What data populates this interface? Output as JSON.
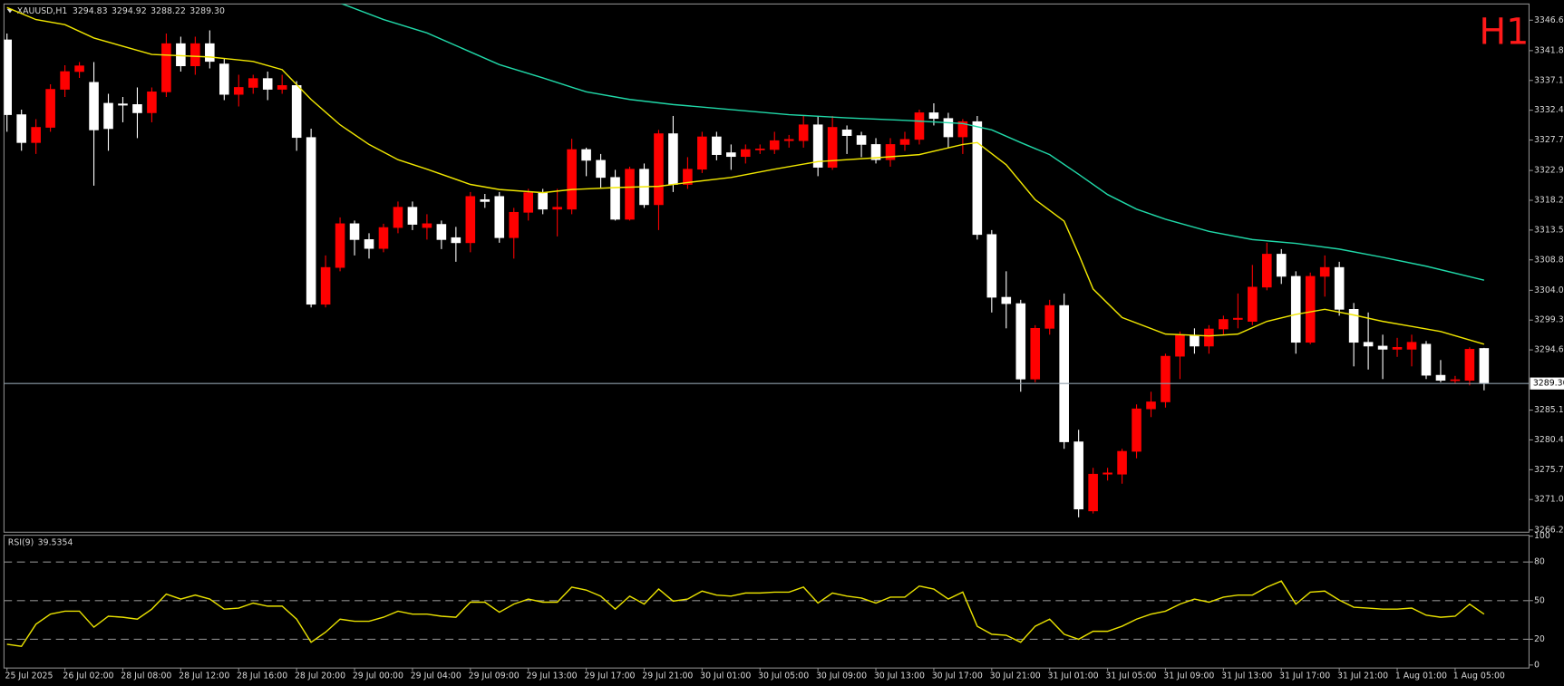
{
  "chart_data": [
    {
      "type": "candlestick",
      "title": "XAUUSD,H1",
      "watermark": "H1",
      "quote": {
        "open": 3294.83,
        "high": 3294.92,
        "low": 3288.22,
        "close": {
          "value": 3289.3,
          "label": "3289.30"
        }
      },
      "up_color": "#ff0000",
      "down_color": "#ffffff",
      "categories": [
        "25 Jul 2025",
        null,
        null,
        null,
        "26 Jul 02:00",
        null,
        null,
        null,
        "28 Jul 08:00",
        null,
        null,
        null,
        "28 Jul 12:00",
        null,
        null,
        null,
        "28 Jul 16:00",
        null,
        null,
        null,
        "28 Jul 20:00",
        null,
        null,
        null,
        "29 Jul 00:00",
        null,
        null,
        null,
        "29 Jul 04:00",
        null,
        null,
        null,
        "29 Jul 09:00",
        null,
        null,
        null,
        "29 Jul 13:00",
        null,
        null,
        null,
        "29 Jul 17:00",
        null,
        null,
        null,
        "29 Jul 21:00",
        null,
        null,
        null,
        "30 Jul 01:00",
        null,
        null,
        null,
        "30 Jul 05:00",
        null,
        null,
        null,
        "30 Jul 09:00",
        null,
        null,
        null,
        "30 Jul 13:00",
        null,
        null,
        null,
        "30 Jul 17:00",
        null,
        null,
        null,
        "30 Jul 21:00",
        null,
        null,
        null,
        "31 Jul 01:00",
        null,
        null,
        null,
        "31 Jul 05:00",
        null,
        null,
        null,
        "31 Jul 09:00",
        null,
        null,
        null,
        "31 Jul 13:00",
        null,
        null,
        null,
        "31 Jul 17:00",
        null,
        null,
        null,
        "31 Jul 21:00",
        null,
        null,
        null,
        "1 Aug 01:00",
        null,
        null,
        null,
        "1 Aug 05:00",
        null,
        null
      ],
      "open": [
        3343.5,
        3331.7,
        3327.3,
        3329.7,
        3335.7,
        3338.5,
        3336.8,
        3333.5,
        3333.4,
        3333.3,
        3332.0,
        3335.3,
        3342.9,
        3339.4,
        3342.9,
        3339.7,
        3334.9,
        3336.0,
        3337.4,
        3335.7,
        3336.3,
        3328.1,
        3301.8,
        3307.6,
        3314.5,
        3312.0,
        3310.6,
        3313.9,
        3317.1,
        3313.9,
        3314.4,
        3312.3,
        3311.5,
        3318.3,
        3318.8,
        3312.3,
        3316.3,
        3319.4,
        3316.8,
        3316.8,
        3326.2,
        3324.5,
        3321.8,
        3315.2,
        3323.1,
        3317.5,
        3328.7,
        3320.7,
        3323.1,
        3328.2,
        3325.7,
        3325.1,
        3326.2,
        3326.2,
        3327.6,
        3327.6,
        3330.1,
        3323.4,
        3329.3,
        3328.4,
        3327.0,
        3324.6,
        3327.0,
        3327.8,
        3332.0,
        3331.1,
        3328.2,
        3330.6,
        3312.8,
        3302.9,
        3301.9,
        3290.0,
        3298.0,
        3301.6,
        3280.1,
        3269.2,
        3275.0,
        3275.0,
        3278.6,
        3285.3,
        3286.4,
        3293.6,
        3296.9,
        3295.2,
        3297.9,
        3299.4,
        3299.1,
        3304.5,
        3309.7,
        3306.2,
        3295.8,
        3306.2,
        3307.6,
        3301.0,
        3295.8,
        3295.2,
        3294.7,
        3294.7,
        3295.5,
        3290.6,
        3289.8,
        3289.8,
        3294.83
      ],
      "high": [
        3344.5,
        3332.5,
        3331,
        3336.5,
        3339.5,
        3340,
        3340,
        3335,
        3334.5,
        3336,
        3336,
        3344.5,
        3344,
        3344,
        3345,
        3340.5,
        3338,
        3338,
        3338.5,
        3338,
        3337,
        3329.5,
        3309.5,
        3315.5,
        3315,
        3313,
        3314.5,
        3318,
        3318,
        3316,
        3315,
        3314,
        3319.5,
        3319.2,
        3319.5,
        3317,
        3320,
        3320,
        3320,
        3327.9,
        3326.5,
        3325.5,
        3323,
        3323.5,
        3324,
        3329.3,
        3331.5,
        3325,
        3329,
        3329,
        3327,
        3327,
        3327,
        3329,
        3328.5,
        3331.5,
        3331.5,
        3331.5,
        3330,
        3329,
        3328,
        3328,
        3329,
        3332.5,
        3333.5,
        3332,
        3331,
        3331.5,
        3313.5,
        3307,
        3302.5,
        3298.5,
        3302.5,
        3303.5,
        3282,
        3276,
        3276,
        3279,
        3286,
        3288,
        3294,
        3297.5,
        3298,
        3298.5,
        3300,
        3303.5,
        3308,
        3311.5,
        3310.5,
        3307,
        3306.8,
        3309.5,
        3308.5,
        3302,
        3300.5,
        3297,
        3296.5,
        3297,
        3296,
        3293,
        3290.5,
        3295,
        3294.92
      ],
      "low": [
        3329,
        3326,
        3325.5,
        3329,
        3334.5,
        3337.5,
        3320.5,
        3326,
        3330.5,
        3328,
        3330.5,
        3334.5,
        3338.5,
        3338,
        3339,
        3334,
        3333,
        3335,
        3334,
        3335,
        3326,
        3301.3,
        3301.3,
        3307,
        3309.5,
        3309,
        3310,
        3313,
        3313.5,
        3312,
        3310.5,
        3308.5,
        3310,
        3317,
        3311.5,
        3309,
        3315,
        3316,
        3312.5,
        3316,
        3322,
        3320,
        3315,
        3315,
        3317,
        3313.5,
        3319.5,
        3320,
        3322.5,
        3324.5,
        3323,
        3324,
        3325.5,
        3325.5,
        3326.5,
        3326.5,
        3322,
        3323,
        3325.5,
        3325,
        3324,
        3323.5,
        3326,
        3327,
        3330,
        3326.5,
        3325.5,
        3312,
        3300.5,
        3298,
        3288,
        3289.5,
        3297,
        3279,
        3268.2,
        3268.8,
        3274,
        3273.5,
        3277.5,
        3284,
        3285.5,
        3290,
        3294,
        3294,
        3297,
        3298,
        3298.5,
        3304,
        3305,
        3294,
        3295.5,
        3303,
        3300,
        3292,
        3291.5,
        3290,
        3293.5,
        3292,
        3290,
        3289.5,
        3289.4,
        3289,
        3288.22
      ],
      "close": [
        3331.7,
        3327.3,
        3329.7,
        3335.7,
        3338.5,
        3339.4,
        3329.3,
        3329.5,
        3333.2,
        3332.0,
        3335.3,
        3342.9,
        3339.4,
        3342.9,
        3340.1,
        3334.9,
        3336.0,
        3337.4,
        3335.7,
        3336.3,
        3328.1,
        3301.8,
        3307.6,
        3314.5,
        3312.0,
        3310.6,
        3313.9,
        3317.1,
        3314.4,
        3314.5,
        3312.0,
        3311.5,
        3318.8,
        3318.0,
        3312.3,
        3316.3,
        3319.4,
        3316.8,
        3317.1,
        3326.2,
        3324.5,
        3321.8,
        3315.2,
        3323.1,
        3317.5,
        3328.7,
        3320.7,
        3323.1,
        3328.2,
        3325.4,
        3325.1,
        3326.2,
        3326.3,
        3327.6,
        3327.8,
        3330.1,
        3323.4,
        3329.7,
        3328.4,
        3327.0,
        3324.6,
        3327.0,
        3327.8,
        3332.0,
        3331.1,
        3328.2,
        3330.6,
        3312.8,
        3302.9,
        3301.9,
        3290.0,
        3298.0,
        3301.6,
        3280.1,
        3269.5,
        3275.0,
        3275.2,
        3278.6,
        3285.3,
        3286.4,
        3293.6,
        3296.9,
        3295.2,
        3297.9,
        3299.4,
        3299.6,
        3304.5,
        3309.7,
        3306.2,
        3295.8,
        3306.2,
        3307.6,
        3301.0,
        3295.8,
        3295.2,
        3294.7,
        3295.0,
        3295.8,
        3290.6,
        3289.8,
        3289.9,
        3294.7,
        3289.3
      ],
      "lines": [
        {
          "color": "#f0e600",
          "x": [
            0,
            2,
            4,
            6,
            10,
            14,
            17,
            19,
            21,
            23,
            25,
            27,
            29,
            32,
            34,
            37,
            39,
            42,
            45,
            47,
            50,
            53,
            56,
            60,
            63,
            66,
            67,
            69,
            71,
            73,
            74,
            75,
            77,
            80,
            83,
            85,
            87,
            89,
            91,
            93,
            95,
            97,
            99,
            102
          ],
          "values": [
            3348.6,
            3346.7,
            3345.9,
            3343.8,
            3341.2,
            3340.8,
            3340.1,
            3338.8,
            3334.1,
            3330.1,
            3327.0,
            3324.6,
            3323.1,
            3320.7,
            3319.9,
            3319.4,
            3319.9,
            3320.2,
            3320.4,
            3321.0,
            3321.8,
            3323.1,
            3324.3,
            3324.9,
            3325.4,
            3327.0,
            3327.3,
            3323.8,
            3318.3,
            3314.9,
            3309.7,
            3304.2,
            3299.7,
            3297.1,
            3296.8,
            3297.1,
            3299.1,
            3300.2,
            3301.0,
            3300.1,
            3299.1,
            3298.3,
            3297.5,
            3295.5
          ]
        },
        {
          "color": "#20d8a8",
          "x": [
            23,
            26,
            29,
            32,
            34,
            37,
            40,
            43,
            46,
            50,
            54,
            58,
            62,
            66,
            68,
            70,
            72,
            74,
            76,
            78,
            80,
            83,
            86,
            89,
            92,
            95,
            98,
            102
          ],
          "values": [
            3349.3,
            3346.7,
            3344.6,
            3341.6,
            3339.6,
            3337.5,
            3335.3,
            3334.1,
            3333.3,
            3332.5,
            3331.7,
            3331.2,
            3330.8,
            3330.3,
            3329.3,
            3327.3,
            3325.4,
            3322.3,
            3319.1,
            3316.8,
            3315.2,
            3313.3,
            3312.0,
            3311.4,
            3310.5,
            3309.2,
            3307.8,
            3305.6
          ]
        }
      ],
      "ylim": [
        3266.0,
        3349.0
      ],
      "yticks": [
        {
          "value": 3346.6,
          "label": "3346.60"
        },
        {
          "value": 3341.8,
          "label": "3341.80"
        },
        {
          "value": 3337.1,
          "label": "3337.10"
        },
        {
          "value": 3332.4,
          "label": "3332.40"
        },
        {
          "value": 3327.7,
          "label": "3327.70"
        },
        {
          "value": 3322.9,
          "label": "3322.90"
        },
        {
          "value": 3318.2,
          "label": "3318.20"
        },
        {
          "value": 3313.5,
          "label": "3313.50"
        },
        {
          "value": 3308.8,
          "label": "3308.80"
        },
        {
          "value": 3304.0,
          "label": "3304.00"
        },
        {
          "value": 3299.3,
          "label": "3299.30"
        },
        {
          "value": 3294.6,
          "label": "3294.60"
        },
        {
          "value": 3285.1,
          "label": "3285.10"
        },
        {
          "value": 3280.4,
          "label": "3280.40"
        },
        {
          "value": 3275.7,
          "label": "3275.70"
        },
        {
          "value": 3271.0,
          "label": "3271.00"
        },
        {
          "value": 3266.2,
          "label": "3266.20"
        }
      ]
    },
    {
      "type": "line",
      "title": "RSI(9)",
      "color": "#e8e000",
      "values": [
        16.1,
        14.5,
        31.7,
        39.5,
        41.8,
        41.8,
        29.4,
        37.9,
        37.1,
        35.6,
        43.4,
        55.1,
        51.2,
        54.3,
        51.2,
        43.4,
        44.2,
        48.1,
        45.7,
        45.7,
        35.6,
        17.7,
        25.5,
        35.6,
        34.0,
        34.0,
        37.1,
        41.8,
        39.5,
        39.5,
        37.9,
        37.1,
        48.8,
        48.8,
        41.0,
        47.3,
        51.2,
        48.8,
        48.8,
        60.5,
        58.2,
        53.5,
        43.4,
        53.5,
        47.3,
        59.0,
        49.6,
        51.2,
        57.4,
        54.3,
        53.5,
        55.9,
        55.9,
        56.6,
        56.6,
        60.5,
        48.1,
        55.9,
        53.5,
        52.0,
        48.1,
        52.7,
        52.7,
        61.3,
        59.0,
        51.2,
        56.6,
        30.1,
        23.9,
        23.1,
        17.7,
        30.1,
        35.6,
        23.9,
        20.0,
        26.2,
        26.2,
        30.1,
        35.6,
        39.5,
        41.8,
        47.3,
        51.2,
        48.8,
        52.7,
        54.3,
        54.3,
        60.5,
        65.2,
        47.3,
        56.6,
        57.4,
        50.4,
        44.9,
        44.2,
        43.4,
        43.4,
        44.2,
        38.7,
        37.1,
        37.9,
        47.3,
        39.5354
      ],
      "ylim": [
        0,
        100
      ],
      "yticks": [
        100,
        80,
        50,
        20,
        0
      ]
    }
  ]
}
